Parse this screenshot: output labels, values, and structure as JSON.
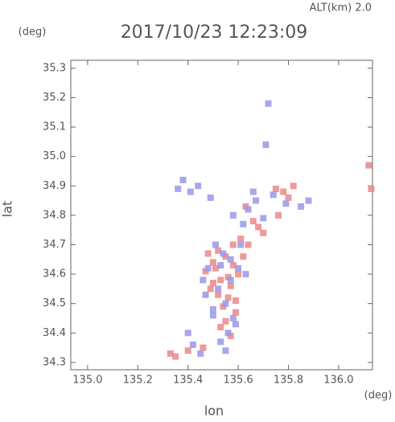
{
  "chart_data": {
    "type": "scatter",
    "title": "2017/10/23 12:23:09",
    "annotation": "ALT(km)  2.0",
    "x_label": "lon",
    "y_label": "lat",
    "x_unit": "(deg)",
    "y_unit": "(deg)",
    "xlim": [
      134.933,
      136.135
    ],
    "ylim": [
      34.275,
      35.327
    ],
    "xticks": [
      {
        "value": 135,
        "label": "135.0"
      },
      135.2,
      135.4,
      135.6,
      135.8,
      {
        "value": 136,
        "label": "136.0"
      }
    ],
    "yticks": [
      34.3,
      34.4,
      34.5,
      34.6,
      34.7,
      34.8,
      34.9,
      {
        "value": 35,
        "label": "35.0"
      },
      35.1,
      35.2,
      35.3
    ],
    "series": [
      {
        "color": "#e98888",
        "x": [
          135.52,
          135.55,
          135.58,
          135.6,
          135.5,
          135.47,
          135.53,
          135.57,
          135.62,
          135.49,
          135.56,
          135.54,
          135.59,
          135.51,
          135.58,
          135.61,
          135.55,
          135.53,
          135.57,
          135.5,
          135.33,
          135.35,
          135.4,
          135.46,
          135.63,
          135.66,
          135.75,
          135.78,
          135.8,
          135.76,
          135.68,
          135.7,
          135.82,
          136.12,
          136.13,
          135.56,
          135.52,
          135.59,
          135.48,
          135.64
        ],
        "values": [
          34.68,
          34.66,
          34.63,
          34.6,
          34.64,
          34.61,
          34.58,
          34.56,
          34.66,
          34.55,
          34.52,
          34.49,
          34.47,
          34.62,
          34.7,
          34.72,
          34.44,
          34.42,
          34.39,
          34.57,
          34.33,
          34.32,
          34.34,
          34.35,
          34.83,
          34.78,
          34.89,
          34.88,
          34.86,
          34.8,
          34.76,
          34.74,
          34.9,
          34.97,
          34.89,
          34.59,
          34.53,
          34.51,
          34.67,
          34.7
        ]
      },
      {
        "color": "#9898ea",
        "x": [
          135.51,
          135.54,
          135.48,
          135.46,
          135.57,
          135.6,
          135.63,
          135.52,
          135.55,
          135.58,
          135.5,
          135.56,
          135.53,
          135.59,
          135.44,
          135.41,
          135.38,
          135.36,
          135.49,
          135.58,
          135.62,
          135.72,
          135.71,
          135.67,
          135.64,
          135.7,
          135.74,
          135.79,
          135.85,
          135.88,
          135.42,
          135.45,
          135.4,
          135.61,
          135.53,
          135.47,
          135.57,
          135.5,
          135.55,
          135.66
        ],
        "values": [
          34.7,
          34.67,
          34.62,
          34.58,
          34.65,
          34.62,
          34.6,
          34.55,
          34.5,
          34.45,
          34.48,
          34.4,
          34.37,
          34.43,
          34.9,
          34.88,
          34.92,
          34.89,
          34.86,
          34.8,
          34.77,
          35.18,
          35.04,
          34.85,
          34.82,
          34.79,
          34.87,
          34.84,
          34.83,
          34.85,
          34.36,
          34.33,
          34.4,
          34.7,
          34.63,
          34.53,
          34.58,
          34.46,
          34.34,
          34.88
        ]
      }
    ]
  }
}
